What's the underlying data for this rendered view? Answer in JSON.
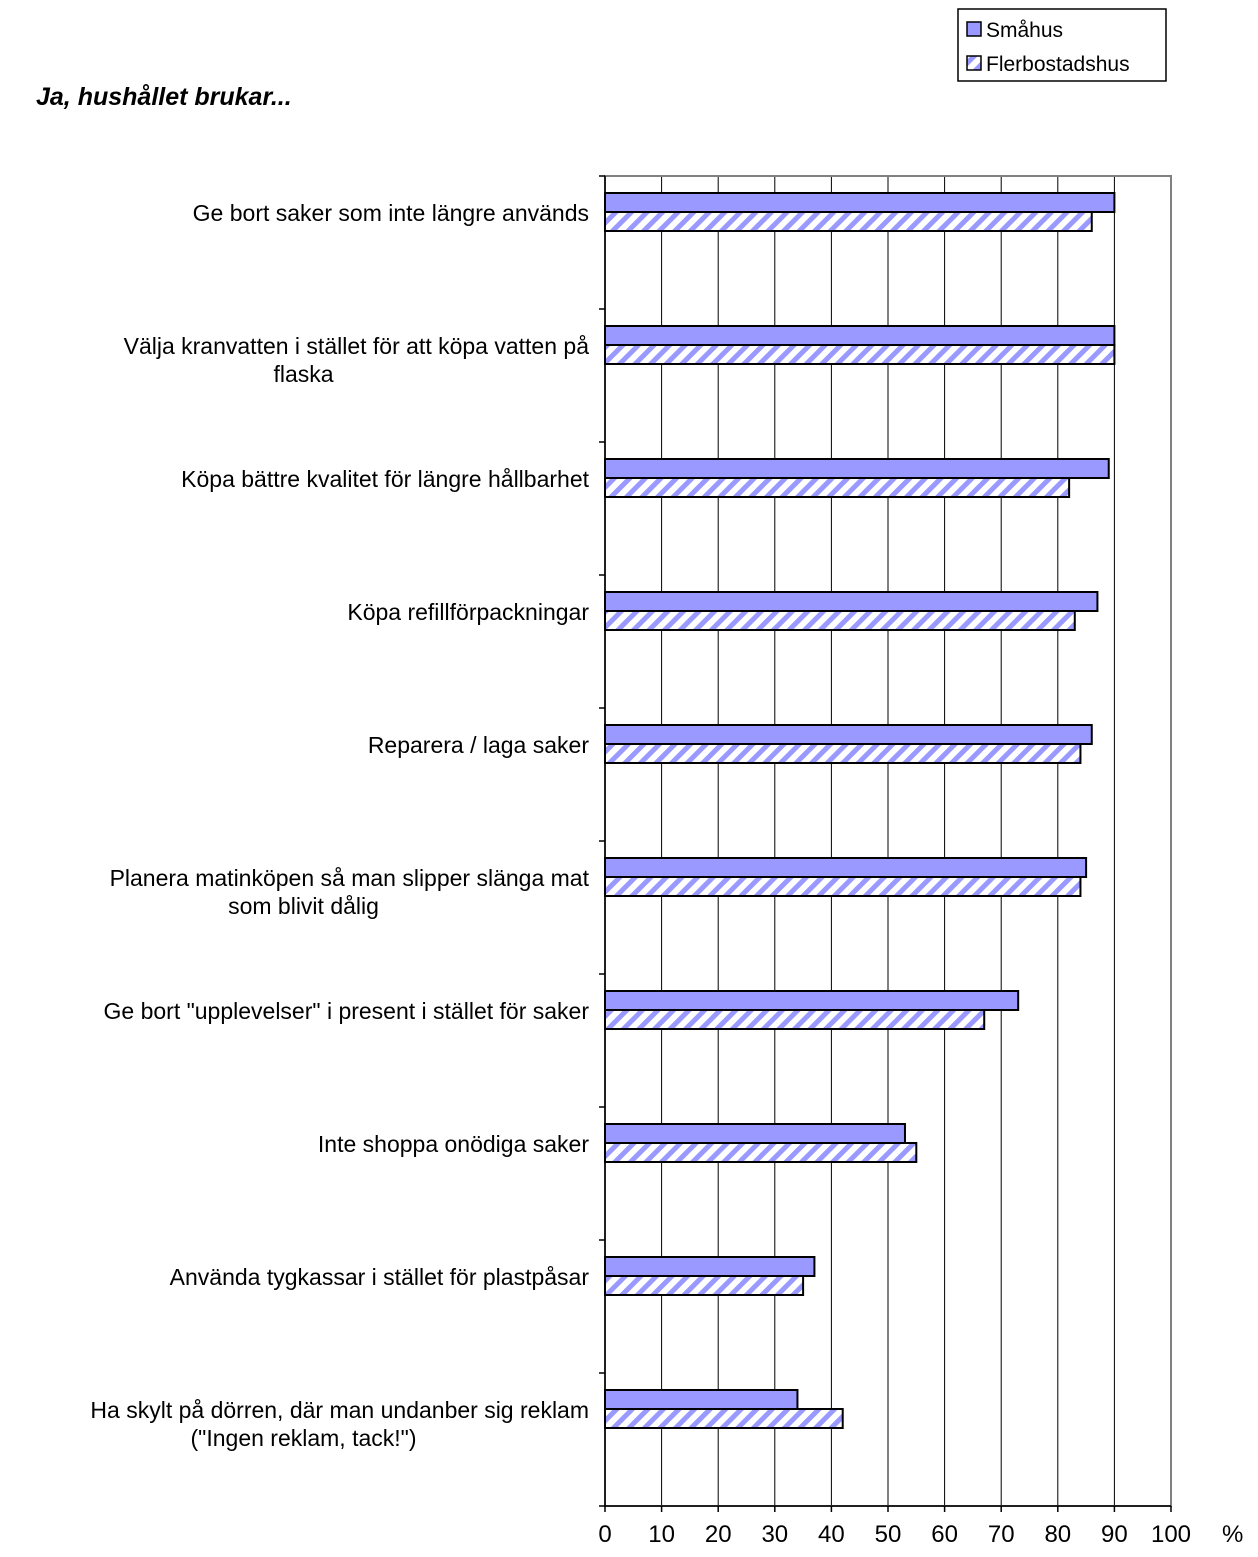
{
  "chart_data": {
    "type": "bar",
    "orientation": "horizontal",
    "title": "Ja, hushållet brukar...",
    "xlabel": "%",
    "ylabel": "",
    "xlim": [
      0,
      100
    ],
    "x_ticks": [
      0,
      10,
      20,
      30,
      40,
      50,
      60,
      70,
      80,
      90,
      100
    ],
    "grid": true,
    "legend_position": "top-right",
    "categories": [
      [
        "Ge bort saker som inte längre används"
      ],
      [
        "Välja kranvatten i stället för att köpa vatten på",
        "flaska"
      ],
      [
        "Köpa bättre kvalitet för längre hållbarhet"
      ],
      [
        "Köpa refillförpackningar"
      ],
      [
        "Reparera / laga saker"
      ],
      [
        "Planera matinköpen så man slipper slänga mat",
        "som blivit dålig"
      ],
      [
        "Ge bort \"upplevelser\" i present i stället för saker"
      ],
      [
        "Inte shoppa onödiga saker"
      ],
      [
        "Använda tygkassar i stället för plastpåsar"
      ],
      [
        "Ha skylt på dörren, där man undanber sig reklam",
        "(\"Ingen reklam, tack!\")"
      ]
    ],
    "series": [
      {
        "name": "Småhus",
        "fill": "solid",
        "color": "#9999ff",
        "values": [
          90,
          90,
          89,
          87,
          86,
          85,
          73,
          53,
          37,
          34
        ]
      },
      {
        "name": "Flerbostadshus",
        "fill": "hatched",
        "color": "#9999ff",
        "values": [
          86,
          90,
          82,
          83,
          84,
          84,
          67,
          55,
          35,
          42
        ]
      }
    ]
  }
}
